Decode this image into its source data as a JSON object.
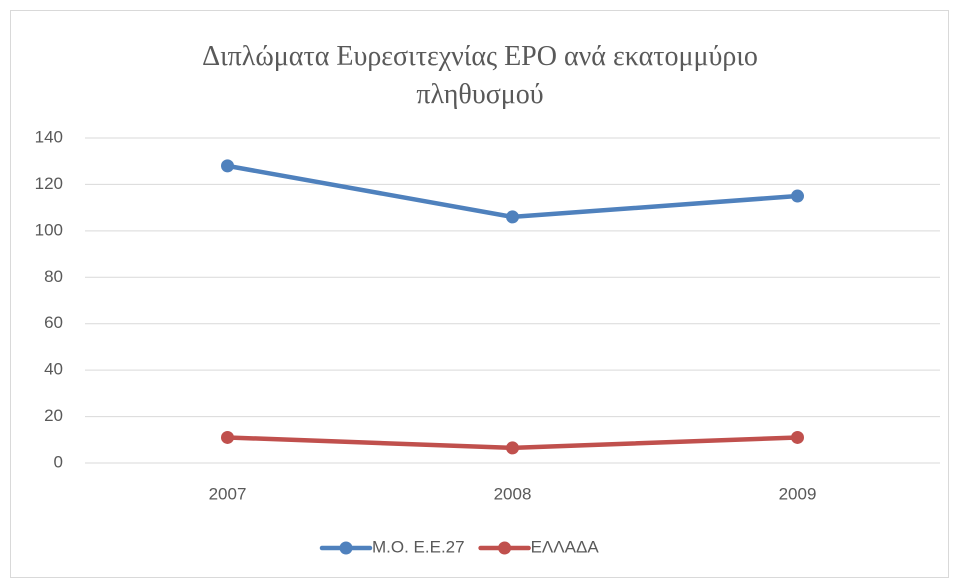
{
  "chart_data": {
    "type": "line",
    "title": "Διπλώματα Ευρεσιτεχνίας EPO ανά εκατομμύριο πληθυσμού",
    "categories": [
      "2007",
      "2008",
      "2009"
    ],
    "series": [
      {
        "name": "Μ.Ο. Ε.Ε.27",
        "color": "#4f81bd",
        "values": [
          128,
          106,
          115
        ]
      },
      {
        "name": "ΕΛΛΑΔΑ",
        "color": "#c0504d",
        "values": [
          11,
          6.5,
          11
        ]
      }
    ],
    "ylim": [
      0,
      140
    ],
    "yticks": [
      0,
      20,
      40,
      60,
      80,
      100,
      120,
      140
    ],
    "grid": true,
    "legend": "bottom"
  }
}
